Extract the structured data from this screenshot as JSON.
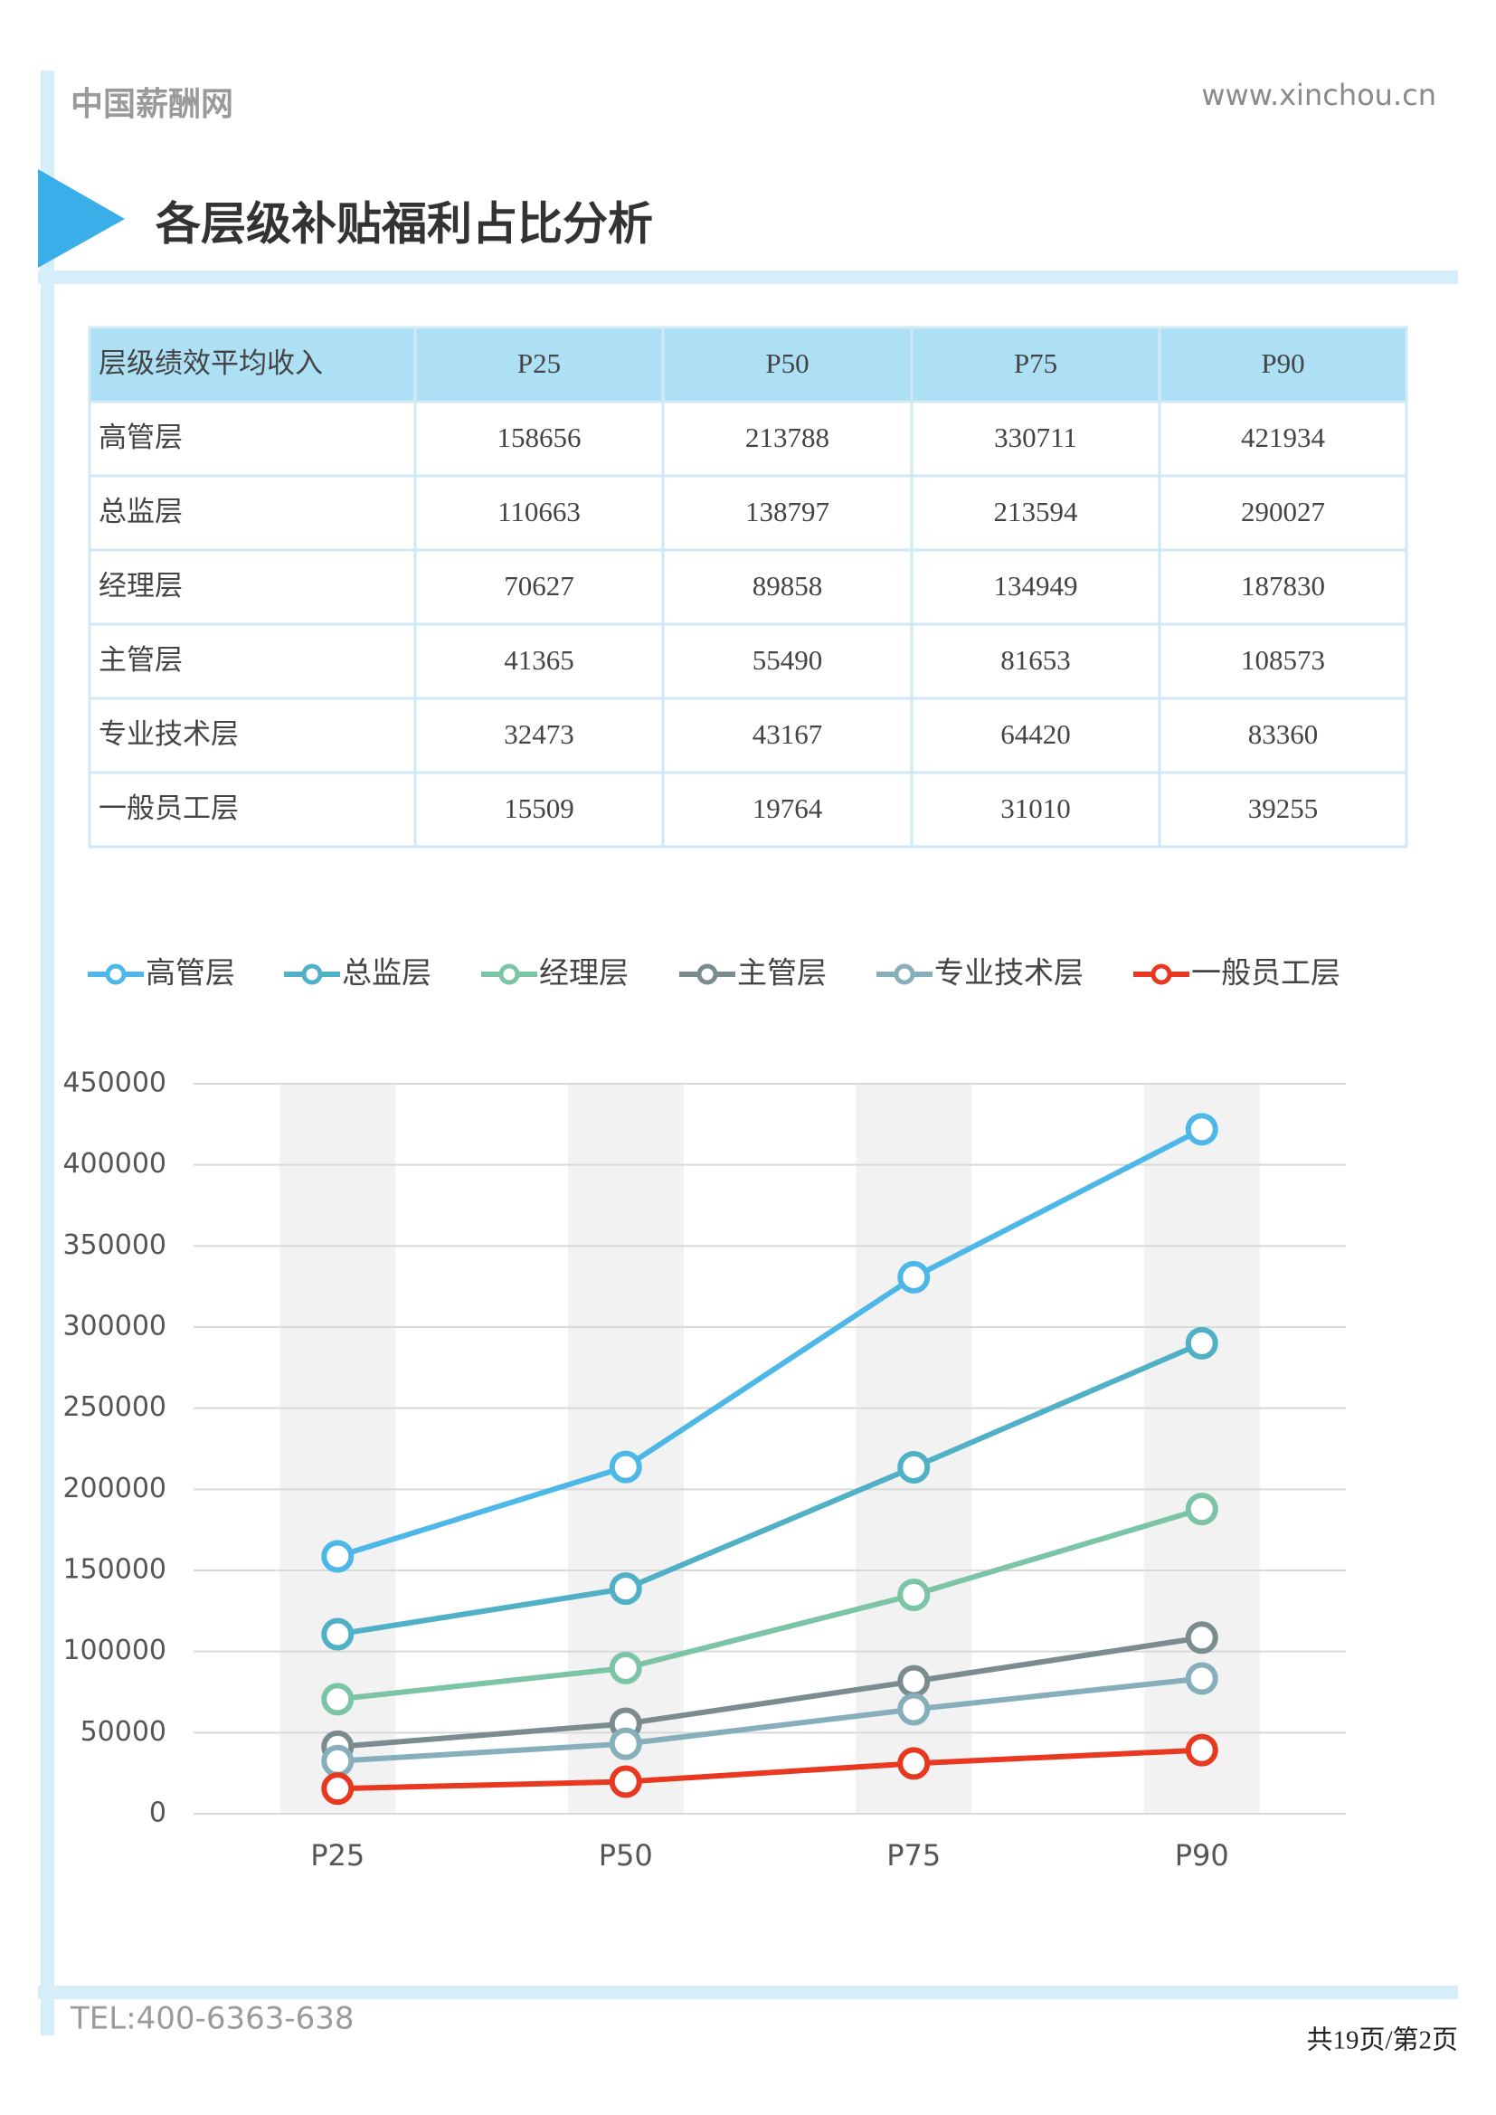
{
  "header": {
    "site": "中国薪酬网",
    "url": "www.xinchou.cn"
  },
  "section": {
    "title": "各层级补贴福利占比分析"
  },
  "table": {
    "columns": [
      "层级绩效平均收入",
      "P25",
      "P50",
      "P75",
      "P90"
    ],
    "rows": [
      [
        "高管层",
        158656,
        213788,
        330711,
        421934
      ],
      [
        "总监层",
        110663,
        138797,
        213594,
        290027
      ],
      [
        "经理层",
        70627,
        89858,
        134949,
        187830
      ],
      [
        "主管层",
        41365,
        55490,
        81653,
        108573
      ],
      [
        "专业技术层",
        32473,
        43167,
        64420,
        83360
      ],
      [
        "一般员工层",
        15509,
        19764,
        31010,
        39255
      ]
    ]
  },
  "chart_data": {
    "type": "line",
    "categories": [
      "P25",
      "P50",
      "P75",
      "P90"
    ],
    "series": [
      {
        "name": "高管层",
        "color": "#4db8e8",
        "values": [
          158656,
          213788,
          330711,
          421934
        ]
      },
      {
        "name": "总监层",
        "color": "#4fb0c6",
        "values": [
          110663,
          138797,
          213594,
          290027
        ]
      },
      {
        "name": "经理层",
        "color": "#7cc4a6",
        "values": [
          70627,
          89858,
          134949,
          187830
        ]
      },
      {
        "name": "主管层",
        "color": "#7a8c8e",
        "values": [
          41365,
          55490,
          81653,
          108573
        ]
      },
      {
        "name": "专业技术层",
        "color": "#86aebb",
        "values": [
          32473,
          43167,
          64420,
          83360
        ]
      },
      {
        "name": "一般员工层",
        "color": "#e8381f",
        "values": [
          15509,
          19764,
          31010,
          39255
        ]
      }
    ],
    "ylim": [
      0,
      450000
    ],
    "yticks": [
      0,
      50000,
      100000,
      150000,
      200000,
      250000,
      300000,
      350000,
      400000,
      450000
    ],
    "grid": true,
    "legend": "top"
  },
  "footer": {
    "tel": "TEL:400-6363-638",
    "page": "共19页/第2页"
  }
}
